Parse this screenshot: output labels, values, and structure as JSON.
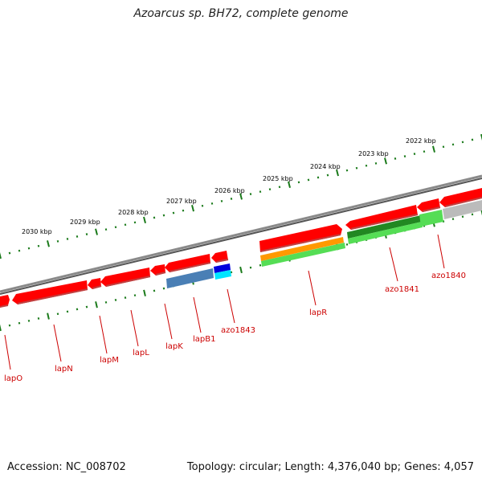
{
  "title": "Azoarcus sp. BH72, complete genome",
  "footer": {
    "accession": "Accession: NC_008702",
    "topology": "Topology: circular; Length: 4,376,040 bp; Genes: 4,057"
  },
  "ruler_labels": [
    "2030 kbp",
    "2029 kbp",
    "2028 kbp",
    "2027 kbp",
    "2026 kbp",
    "2025 kbp",
    "2024 kbp",
    "2023 kbp",
    "2022 kbp"
  ],
  "gene_labels": [
    "lapO",
    "lapN",
    "lapM",
    "lapL",
    "lapK",
    "lapB1",
    "azo1843",
    "lapR",
    "azo1841",
    "azo1840"
  ],
  "colors": {
    "gene_red": "#ff0000",
    "gene_red_shadow": "#b00000",
    "backbone": "#8a8a8a",
    "ruler_green": "#1a7a1a",
    "label_red": "#cc0000",
    "orange": "#ff9900",
    "light_green": "#55dd55",
    "dark_green": "#228822",
    "steel_blue": "#4a7fb5",
    "blue": "#0000dd",
    "cyan": "#00e5ff",
    "gray": "#bbbbbb"
  }
}
